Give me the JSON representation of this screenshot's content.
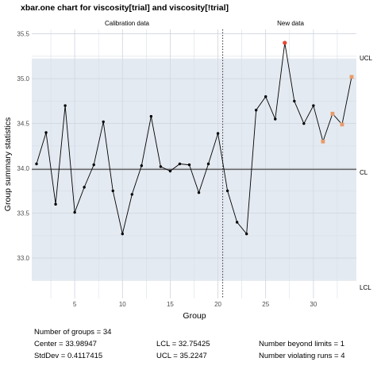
{
  "chart_data": {
    "type": "line",
    "title": "xbar.one chart for viscosity[trial] and viscosity[!trial]",
    "xlabel": "Group",
    "ylabel": "Group summary statistics",
    "xlim": [
      0.5,
      34.5
    ],
    "ylim": [
      32.55,
      35.55
    ],
    "x_ticks": [
      "5",
      "10",
      "15",
      "20",
      "25",
      "30"
    ],
    "y_ticks": [
      "33.0",
      "33.5",
      "34.0",
      "34.5",
      "35.0",
      "35.5"
    ],
    "grid": true,
    "sections": [
      "Calibration data",
      "New data"
    ],
    "section_divider_x": 20.5,
    "control_limits": {
      "UCL": 35.2247,
      "CL": 33.98947,
      "LCL": 32.75425
    },
    "limit_labels": [
      "UCL",
      "CL",
      "LCL"
    ],
    "series": [
      {
        "values": [
          [
            1,
            34.05
          ],
          [
            2,
            34.4
          ],
          [
            3,
            33.6
          ],
          [
            4,
            34.7
          ],
          [
            5,
            33.51
          ],
          [
            6,
            33.79
          ],
          [
            7,
            34.04
          ],
          [
            8,
            34.52
          ],
          [
            9,
            33.75
          ],
          [
            10,
            33.27
          ],
          [
            11,
            33.71
          ],
          [
            12,
            34.03
          ],
          [
            13,
            34.58
          ],
          [
            14,
            34.02
          ],
          [
            15,
            33.97
          ],
          [
            16,
            34.05
          ],
          [
            17,
            34.04
          ],
          [
            18,
            33.73
          ],
          [
            19,
            34.05
          ],
          [
            20,
            34.39
          ],
          [
            21,
            33.75
          ],
          [
            22,
            33.4
          ],
          [
            23,
            33.27
          ],
          [
            24,
            34.65
          ],
          [
            25,
            34.8
          ],
          [
            26,
            34.55
          ],
          [
            27,
            35.4
          ],
          [
            28,
            34.75
          ],
          [
            29,
            34.5
          ],
          [
            30,
            34.7
          ],
          [
            31,
            34.3
          ],
          [
            32,
            34.61
          ],
          [
            33,
            34.49
          ],
          [
            34,
            35.02
          ]
        ],
        "beyond_limits": [
          27
        ],
        "violating_runs": [
          31,
          32,
          33,
          34
        ]
      }
    ],
    "colors": {
      "band": "#dfe6ee",
      "grid": "#c8d0dc",
      "line": "#000000",
      "beyond": "#e34a33",
      "violating": "#e89a6a",
      "center": "#666666"
    }
  },
  "stats": {
    "groups": "Number of groups = 34",
    "center": "Center = 33.98947",
    "stddev": "StdDev = 0.4117415",
    "lcl": "LCL = 32.75425",
    "ucl": "UCL = 35.2247",
    "beyond": "Number beyond limits = 1",
    "violating": "Number violating runs = 4"
  }
}
